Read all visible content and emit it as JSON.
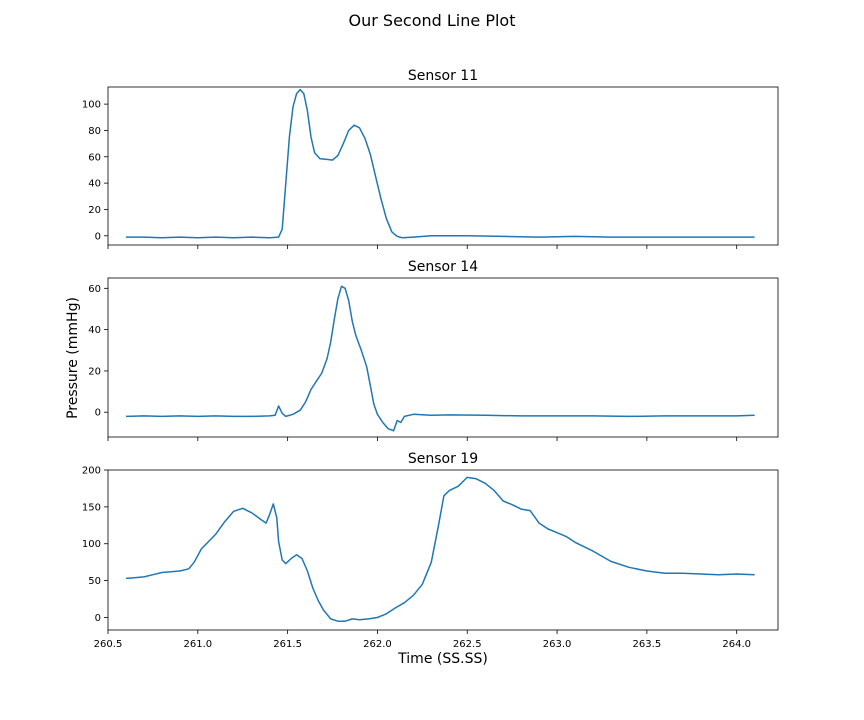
{
  "chart_data": {
    "title": "Our Second Line Plot",
    "xlabel": "Time (SS.SS)",
    "ylabel": "Pressure (mmHg)",
    "x_ticks": [
      "260.5",
      "261.0",
      "261.5",
      "262.0",
      "262.5",
      "263.0",
      "263.5",
      "264.0"
    ],
    "xlim": [
      260.5,
      264.23
    ],
    "line_color": "#1f77b4",
    "subplots": [
      {
        "type": "line",
        "title": "Sensor 11",
        "ylim": [
          -7,
          113
        ],
        "y_ticks": [
          "0",
          "20",
          "40",
          "60",
          "80",
          "100"
        ],
        "points": [
          [
            260.6,
            -1
          ],
          [
            260.7,
            -1
          ],
          [
            260.8,
            -1.5
          ],
          [
            260.9,
            -1
          ],
          [
            261.0,
            -1.5
          ],
          [
            261.1,
            -1
          ],
          [
            261.2,
            -1.5
          ],
          [
            261.3,
            -1
          ],
          [
            261.4,
            -1.5
          ],
          [
            261.45,
            -1
          ],
          [
            261.47,
            5
          ],
          [
            261.49,
            40
          ],
          [
            261.51,
            75
          ],
          [
            261.53,
            98
          ],
          [
            261.55,
            108
          ],
          [
            261.57,
            111
          ],
          [
            261.59,
            108
          ],
          [
            261.61,
            95
          ],
          [
            261.63,
            75
          ],
          [
            261.65,
            63
          ],
          [
            261.68,
            58.5
          ],
          [
            261.72,
            58
          ],
          [
            261.75,
            57.5
          ],
          [
            261.78,
            61
          ],
          [
            261.81,
            70
          ],
          [
            261.84,
            80
          ],
          [
            261.87,
            84
          ],
          [
            261.9,
            82
          ],
          [
            261.93,
            74
          ],
          [
            261.96,
            62
          ],
          [
            261.99,
            45
          ],
          [
            262.02,
            28
          ],
          [
            262.05,
            13
          ],
          [
            262.08,
            3
          ],
          [
            262.11,
            -0.5
          ],
          [
            262.14,
            -1.5
          ],
          [
            262.2,
            -1
          ],
          [
            262.3,
            0
          ],
          [
            262.5,
            0
          ],
          [
            262.7,
            -0.5
          ],
          [
            262.9,
            -1
          ],
          [
            263.1,
            -0.5
          ],
          [
            263.3,
            -1
          ],
          [
            263.5,
            -1
          ],
          [
            263.7,
            -1
          ],
          [
            263.9,
            -1
          ],
          [
            264.1,
            -1
          ]
        ]
      },
      {
        "type": "line",
        "title": "Sensor 14",
        "ylim": [
          -12,
          65
        ],
        "y_ticks": [
          "0",
          "20",
          "40",
          "60"
        ],
        "points": [
          [
            260.6,
            -2
          ],
          [
            260.7,
            -1.8
          ],
          [
            260.8,
            -2
          ],
          [
            260.9,
            -1.8
          ],
          [
            261.0,
            -2
          ],
          [
            261.1,
            -1.8
          ],
          [
            261.2,
            -2
          ],
          [
            261.3,
            -2
          ],
          [
            261.4,
            -1.8
          ],
          [
            261.43,
            -1.5
          ],
          [
            261.45,
            3
          ],
          [
            261.47,
            -0.5
          ],
          [
            261.49,
            -2
          ],
          [
            261.53,
            -1
          ],
          [
            261.57,
            1
          ],
          [
            261.6,
            5
          ],
          [
            261.63,
            11
          ],
          [
            261.66,
            15
          ],
          [
            261.69,
            19
          ],
          [
            261.72,
            26
          ],
          [
            261.74,
            34
          ],
          [
            261.76,
            45
          ],
          [
            261.78,
            55
          ],
          [
            261.8,
            61
          ],
          [
            261.82,
            60
          ],
          [
            261.84,
            54
          ],
          [
            261.86,
            44
          ],
          [
            261.88,
            37
          ],
          [
            261.91,
            30
          ],
          [
            261.94,
            22
          ],
          [
            261.96,
            13
          ],
          [
            261.98,
            4
          ],
          [
            262.0,
            -1
          ],
          [
            262.03,
            -5
          ],
          [
            262.06,
            -8
          ],
          [
            262.09,
            -9
          ],
          [
            262.11,
            -4
          ],
          [
            262.13,
            -5
          ],
          [
            262.15,
            -2
          ],
          [
            262.2,
            -1
          ],
          [
            262.3,
            -1.5
          ],
          [
            262.4,
            -1.3
          ],
          [
            262.6,
            -1.5
          ],
          [
            262.8,
            -1.8
          ],
          [
            263.0,
            -1.8
          ],
          [
            263.2,
            -1.8
          ],
          [
            263.4,
            -2
          ],
          [
            263.6,
            -1.8
          ],
          [
            263.8,
            -1.8
          ],
          [
            264.0,
            -1.8
          ],
          [
            264.1,
            -1.5
          ]
        ]
      },
      {
        "type": "line",
        "title": "Sensor 19",
        "ylim": [
          -17,
          200
        ],
        "y_ticks": [
          "0",
          "50",
          "100",
          "150",
          "200"
        ],
        "points": [
          [
            260.6,
            53
          ],
          [
            260.7,
            55
          ],
          [
            260.75,
            58
          ],
          [
            260.8,
            61
          ],
          [
            260.85,
            62
          ],
          [
            260.9,
            63
          ],
          [
            260.95,
            66
          ],
          [
            260.98,
            75
          ],
          [
            261.02,
            93
          ],
          [
            261.06,
            103
          ],
          [
            261.1,
            113
          ],
          [
            261.15,
            130
          ],
          [
            261.2,
            144
          ],
          [
            261.25,
            148
          ],
          [
            261.3,
            142
          ],
          [
            261.35,
            133
          ],
          [
            261.38,
            128
          ],
          [
            261.4,
            140
          ],
          [
            261.42,
            154
          ],
          [
            261.44,
            135
          ],
          [
            261.45,
            103
          ],
          [
            261.47,
            78
          ],
          [
            261.49,
            73
          ],
          [
            261.52,
            80
          ],
          [
            261.55,
            85
          ],
          [
            261.58,
            80
          ],
          [
            261.61,
            63
          ],
          [
            261.64,
            40
          ],
          [
            261.67,
            23
          ],
          [
            261.7,
            10
          ],
          [
            261.74,
            -2
          ],
          [
            261.78,
            -5
          ],
          [
            261.82,
            -5
          ],
          [
            261.86,
            -2
          ],
          [
            261.9,
            -3
          ],
          [
            261.95,
            -2
          ],
          [
            262.0,
            0
          ],
          [
            262.05,
            5
          ],
          [
            262.1,
            13
          ],
          [
            262.15,
            20
          ],
          [
            262.2,
            30
          ],
          [
            262.25,
            45
          ],
          [
            262.3,
            75
          ],
          [
            262.34,
            125
          ],
          [
            262.37,
            165
          ],
          [
            262.4,
            172
          ],
          [
            262.45,
            178
          ],
          [
            262.5,
            190
          ],
          [
            262.55,
            188
          ],
          [
            262.6,
            182
          ],
          [
            262.65,
            172
          ],
          [
            262.7,
            158
          ],
          [
            262.75,
            153
          ],
          [
            262.8,
            147
          ],
          [
            262.85,
            145
          ],
          [
            262.9,
            128
          ],
          [
            262.95,
            120
          ],
          [
            263.0,
            115
          ],
          [
            263.05,
            110
          ],
          [
            263.1,
            102
          ],
          [
            263.15,
            96
          ],
          [
            263.2,
            90
          ],
          [
            263.3,
            76
          ],
          [
            263.4,
            68
          ],
          [
            263.5,
            63
          ],
          [
            263.6,
            60
          ],
          [
            263.7,
            60
          ],
          [
            263.8,
            59
          ],
          [
            263.9,
            58
          ],
          [
            264.0,
            59
          ],
          [
            264.1,
            58
          ]
        ]
      }
    ]
  }
}
